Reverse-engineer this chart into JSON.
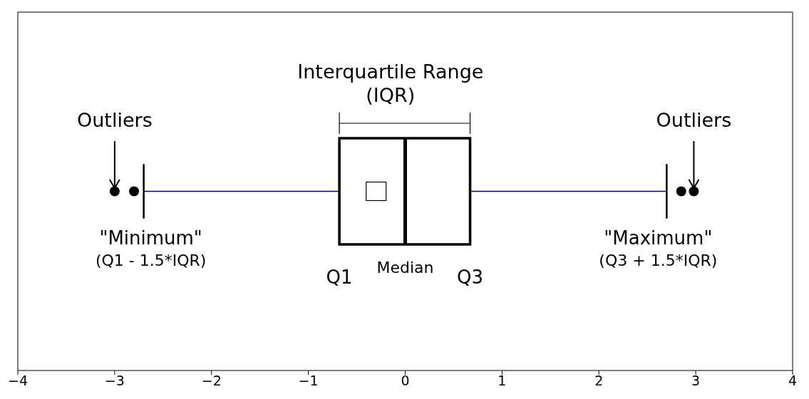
{
  "chart_data": {
    "type": "box",
    "orientation": "horizontal",
    "categories": [
      null
    ],
    "boxes": [
      {
        "low": -2.7,
        "q1": -0.68,
        "median": 0,
        "q3": 0.67,
        "high": 2.7,
        "mean": -0.3,
        "outliers": [
          -3.0,
          -2.8,
          2.85,
          2.98
        ]
      }
    ],
    "xlim": [
      -4,
      4
    ],
    "xticks": [
      {
        "value": -4,
        "label": "−4"
      },
      {
        "value": -3,
        "label": "−3"
      },
      {
        "value": -2,
        "label": "−2"
      },
      {
        "value": -1,
        "label": "−1"
      },
      {
        "value": 0,
        "label": "0"
      },
      {
        "value": 1,
        "label": "1"
      },
      {
        "value": 2,
        "label": "2"
      },
      {
        "value": 3,
        "label": "3"
      },
      {
        "value": 4,
        "label": "4"
      }
    ],
    "tick_labels": "x",
    "grid": false,
    "legend": false,
    "annotations": [
      "Interquartile Range",
      "(IQR)",
      "Outliers",
      "Outliers",
      "\"Minimum\"",
      "(Q1 - 1.5*IQR)",
      "\"Maximum\"",
      "(Q3 + 1.5*IQR)",
      "Q1",
      "Median",
      "Q3"
    ]
  }
}
